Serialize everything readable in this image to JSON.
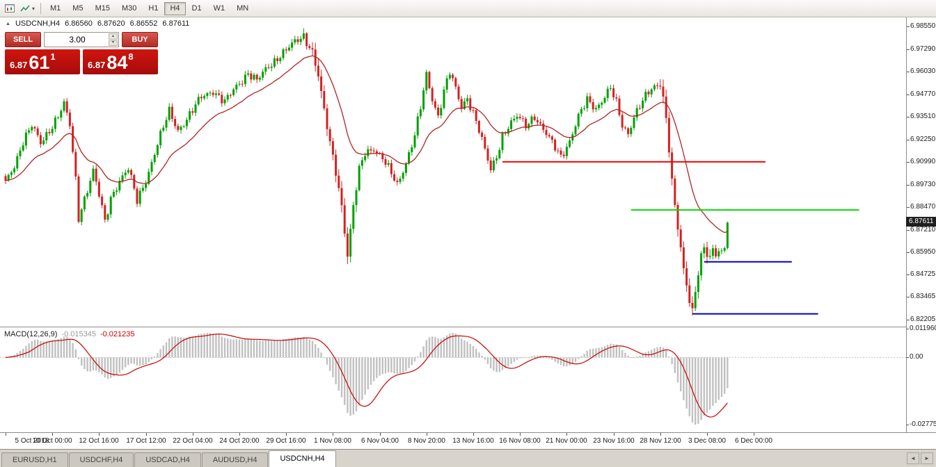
{
  "toolbar": {
    "timeframes": [
      "M1",
      "M5",
      "M15",
      "M30",
      "H1",
      "H4",
      "D1",
      "W1",
      "MN"
    ],
    "active_timeframe": "H4",
    "caret_icon": "▾"
  },
  "chart_info": {
    "expand_icon": "▲",
    "symbol": "USDCNH,H4",
    "open": "6.86560",
    "high": "6.87620",
    "low": "6.86552",
    "close": "6.87611"
  },
  "trade_panel": {
    "sell_label": "SELL",
    "buy_label": "BUY",
    "volume": "3.00",
    "spinner_up_icon": "▲",
    "spinner_down_icon": "▼",
    "bid": {
      "prefix": "6.87",
      "big": "61",
      "sup": "1"
    },
    "ask": {
      "prefix": "6.87",
      "big": "84",
      "sup": "8"
    }
  },
  "price_axis": {
    "labels": [
      "6.98550",
      "6.97290",
      "6.96030",
      "6.94770",
      "6.93510",
      "6.92250",
      "6.90990",
      "6.89730",
      "6.88470",
      "6.87210",
      "6.85950",
      "6.84725",
      "6.83465",
      "6.82205"
    ],
    "current_price": "6.87611"
  },
  "time_axis": {
    "labels": [
      "5 Oct 2018",
      "10 Oct 00:00",
      "12 Oct 16:00",
      "17 Oct 12:00",
      "22 Oct 04:00",
      "24 Oct 20:00",
      "29 Oct 16:00",
      "1 Nov 08:00",
      "6 Nov 04:00",
      "8 Nov 20:00",
      "13 Nov 16:00",
      "16 Nov 08:00",
      "21 Nov 00:00",
      "23 Nov 16:00",
      "28 Nov 12:00",
      "3 Dec 08:00",
      "6 Dec 00:00"
    ],
    "label_every_n_candles": 16
  },
  "macd_panel": {
    "label": "MACD(12,26,9)",
    "value_macd": "-0.015345",
    "value_signal": "-0.021235",
    "axis_labels": [
      "0.011960",
      "0.00",
      "-0.02775"
    ]
  },
  "bottom_tabs": {
    "tabs": [
      "EURUSD,H1",
      "USDCHF,H4",
      "USDCAD,H4",
      "AUDUSD,H4",
      "USDCNH,H4"
    ],
    "active": "USDCNH,H4",
    "scroll_left_icon": "◄",
    "scroll_right_icon": "►"
  },
  "colors": {
    "up": "#00a000",
    "down": "#d62020",
    "ma": "#b22222",
    "macd_hist": "#c0c0c0",
    "macd_signal": "#cc0000",
    "badge_bg": "#1f1f1f",
    "hline_red": "#ff0000",
    "hline_green": "#00dd00",
    "hline_blue": "#0000cc"
  },
  "chart_data": {
    "type": "candlestick",
    "symbol": "USDCNH",
    "timeframe": "H4",
    "title": "USDCNH,H4",
    "axis": {
      "price_top_label": 6.9855,
      "price_bottom_label": 6.82205,
      "price_step": 0.0126
    },
    "num_candles": 248,
    "last_close": 6.87611,
    "ma_period": 21,
    "macd_params": [
      12,
      26,
      9
    ],
    "close_anchors": [
      [
        0,
        6.898
      ],
      [
        3,
        6.908
      ],
      [
        6,
        6.922
      ],
      [
        9,
        6.93
      ],
      [
        12,
        6.92
      ],
      [
        15,
        6.928
      ],
      [
        18,
        6.936
      ],
      [
        20,
        6.942
      ],
      [
        22,
        6.93
      ],
      [
        24,
        6.9
      ],
      [
        25,
        6.879
      ],
      [
        27,
        6.89
      ],
      [
        30,
        6.905
      ],
      [
        33,
        6.884
      ],
      [
        34,
        6.876
      ],
      [
        36,
        6.89
      ],
      [
        39,
        6.9
      ],
      [
        42,
        6.906
      ],
      [
        45,
        6.888
      ],
      [
        48,
        6.9
      ],
      [
        52,
        6.92
      ],
      [
        56,
        6.938
      ],
      [
        59,
        6.928
      ],
      [
        63,
        6.936
      ],
      [
        67,
        6.946
      ],
      [
        71,
        6.95
      ],
      [
        75,
        6.943
      ],
      [
        79,
        6.952
      ],
      [
        83,
        6.96
      ],
      [
        86,
        6.955
      ],
      [
        90,
        6.963
      ],
      [
        94,
        6.97
      ],
      [
        98,
        6.975
      ],
      [
        102,
        6.98
      ],
      [
        105,
        6.972
      ],
      [
        107,
        6.958
      ],
      [
        109,
        6.938
      ],
      [
        111,
        6.92
      ],
      [
        113,
        6.905
      ],
      [
        115,
        6.886
      ],
      [
        116,
        6.872
      ],
      [
        117,
        6.858
      ],
      [
        119,
        6.885
      ],
      [
        121,
        6.905
      ],
      [
        123,
        6.915
      ],
      [
        126,
        6.918
      ],
      [
        129,
        6.912
      ],
      [
        132,
        6.903
      ],
      [
        134,
        6.897
      ],
      [
        137,
        6.91
      ],
      [
        140,
        6.925
      ],
      [
        142,
        6.94
      ],
      [
        144,
        6.958
      ],
      [
        146,
        6.945
      ],
      [
        148,
        6.936
      ],
      [
        150,
        6.95
      ],
      [
        152,
        6.96
      ],
      [
        154,
        6.95
      ],
      [
        156,
        6.94
      ],
      [
        158,
        6.946
      ],
      [
        160,
        6.938
      ],
      [
        162,
        6.928
      ],
      [
        164,
        6.916
      ],
      [
        166,
        6.905
      ],
      [
        168,
        6.913
      ],
      [
        170,
        6.925
      ],
      [
        172,
        6.93
      ],
      [
        175,
        6.935
      ],
      [
        178,
        6.93
      ],
      [
        181,
        6.936
      ],
      [
        184,
        6.928
      ],
      [
        187,
        6.92
      ],
      [
        190,
        6.913
      ],
      [
        193,
        6.922
      ],
      [
        196,
        6.935
      ],
      [
        199,
        6.944
      ],
      [
        202,
        6.94
      ],
      [
        205,
        6.947
      ],
      [
        207,
        6.951
      ],
      [
        209,
        6.942
      ],
      [
        211,
        6.93
      ],
      [
        213,
        6.926
      ],
      [
        215,
        6.936
      ],
      [
        218,
        6.944
      ],
      [
        221,
        6.95
      ],
      [
        224,
        6.954
      ],
      [
        225,
        6.947
      ],
      [
        226,
        6.934
      ],
      [
        227,
        6.918
      ],
      [
        228,
        6.9
      ],
      [
        229,
        6.884
      ],
      [
        230,
        6.873
      ],
      [
        231,
        6.861
      ],
      [
        232,
        6.849
      ],
      [
        233,
        6.841
      ],
      [
        234,
        6.833
      ],
      [
        235,
        6.828
      ],
      [
        236,
        6.838
      ],
      [
        237,
        6.85
      ],
      [
        238,
        6.858
      ],
      [
        239,
        6.862
      ],
      [
        240,
        6.858
      ],
      [
        241,
        6.856
      ],
      [
        242,
        6.86
      ],
      [
        243,
        6.857
      ],
      [
        244,
        6.861
      ],
      [
        245,
        6.859
      ],
      [
        246,
        6.862
      ],
      [
        247,
        6.87611
      ]
    ],
    "hlines": [
      {
        "price": 6.91,
        "from_slot": 170,
        "to_slot": 260,
        "color": "#ff0000"
      },
      {
        "price": 6.8832,
        "from_slot": 214,
        "to_slot": 292,
        "color": "#00dd00"
      },
      {
        "price": 6.8543,
        "from_slot": 239,
        "to_slot": 269,
        "color": "#0000cc"
      },
      {
        "price": 6.8253,
        "from_slot": 235,
        "to_slot": 278,
        "color": "#0000cc"
      }
    ]
  }
}
